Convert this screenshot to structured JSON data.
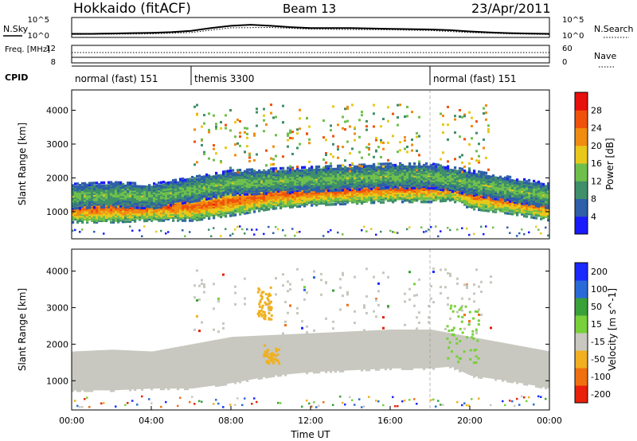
{
  "header": {
    "station": "Hokkaido (fitACF)",
    "beam": "Beam 13",
    "date": "23/Apr/2011"
  },
  "chart_data": [
    {
      "type": "line",
      "panel": "noise",
      "left_label": "N.Sky",
      "right_label": "N.Search",
      "left_ticks": [
        "10^5",
        "10^0"
      ],
      "right_ticks": [
        "10^5",
        "10^0"
      ],
      "series": [
        {
          "name": "N.Sky",
          "x": [
            0,
            1,
            2,
            3,
            4,
            5,
            6,
            7,
            8,
            9,
            10,
            11,
            12,
            13,
            14,
            15,
            16,
            17,
            18,
            19,
            20,
            21,
            22,
            23,
            24
          ],
          "y": [
            0.6,
            0.6,
            0.7,
            0.8,
            0.9,
            1.1,
            1.5,
            2.3,
            3.0,
            3.3,
            3.0,
            2.6,
            2.3,
            2.3,
            2.3,
            2.2,
            2.1,
            2.0,
            1.9,
            1.7,
            1.3,
            1.0,
            0.8,
            0.7,
            0.6
          ]
        },
        {
          "name": "N.Search",
          "x": [
            0,
            2,
            4,
            6,
            8,
            10,
            12,
            14,
            16,
            18,
            20,
            22,
            24
          ],
          "y": [
            0.4,
            0.5,
            0.6,
            1.0,
            2.4,
            2.5,
            2.0,
            1.9,
            1.8,
            1.6,
            1.0,
            0.6,
            0.4
          ]
        }
      ]
    },
    {
      "type": "line",
      "panel": "frequency",
      "left_label": "Freq. [MHz]",
      "right_label": "Nave",
      "left_ticks": [
        "12",
        "8"
      ],
      "right_ticks": [
        "60",
        "0"
      ],
      "freq_mhz": 10.8,
      "nave_sparse": 1
    },
    {
      "type": "table",
      "panel": "cpid",
      "label": "CPID",
      "segments": [
        {
          "start": 0,
          "end": 6,
          "label": "normal (fast) 151"
        },
        {
          "start": 6,
          "end": 18,
          "label": "themis 3300"
        },
        {
          "start": 18,
          "end": 24,
          "label": "normal (fast) 151"
        }
      ]
    },
    {
      "type": "heatmap",
      "panel": "power",
      "ylabel": "Slant Range [km]",
      "ylim": [
        200,
        4600
      ],
      "yticks": [
        1000,
        2000,
        3000,
        4000
      ],
      "colorbar_label": "Power [dB]",
      "colorbar_ticks": [
        4,
        8,
        12,
        16,
        20,
        24,
        28
      ],
      "colorbar_colors": [
        "#1a1aff",
        "#2e5fa8",
        "#3f8f6a",
        "#6fbf4c",
        "#e8c81a",
        "#f08c10",
        "#f0520c",
        "#e8100c"
      ],
      "echo_bands": [
        {
          "x": [
            0,
            2,
            4,
            6,
            8,
            10,
            12,
            14,
            16,
            17,
            18,
            19,
            20,
            22,
            24
          ],
          "center_km": [
            1150,
            1150,
            1200,
            1200,
            1350,
            1550,
            1650,
            1700,
            1750,
            1750,
            1750,
            1800,
            1550,
            1400,
            1200
          ],
          "width_km": 350,
          "intensity": 26
        },
        {
          "x": [
            0,
            2,
            4,
            6,
            8,
            10,
            12,
            14,
            16,
            18,
            20,
            22,
            24
          ],
          "center_km": [
            1500,
            1550,
            1500,
            1700,
            1900,
            1950,
            2000,
            2050,
            2100,
            2100,
            1900,
            1700,
            1500
          ],
          "width_km": 300,
          "intensity": 14
        }
      ]
    },
    {
      "type": "heatmap",
      "panel": "velocity",
      "ylabel": "Slant Range [km]",
      "ylim": [
        200,
        4600
      ],
      "yticks": [
        1000,
        2000,
        3000,
        4000
      ],
      "xlabel": "Time UT",
      "x_ticks": [
        "00:00",
        "04:00",
        "08:00",
        "12:00",
        "16:00",
        "20:00",
        "00:00"
      ],
      "colorbar_label": "Velocity [m s^-1]",
      "colorbar_ticks": [
        "200",
        "100",
        "50",
        "15",
        "-15",
        "-50",
        "-100",
        "-200"
      ],
      "colorbar_colors": [
        "#1a2aff",
        "#2a6ad8",
        "#3aa03a",
        "#78d03a",
        "#c8c8c0",
        "#f0b020",
        "#f07010",
        "#e8200c"
      ],
      "ground_scatter_color": "#c8c8c0"
    }
  ]
}
